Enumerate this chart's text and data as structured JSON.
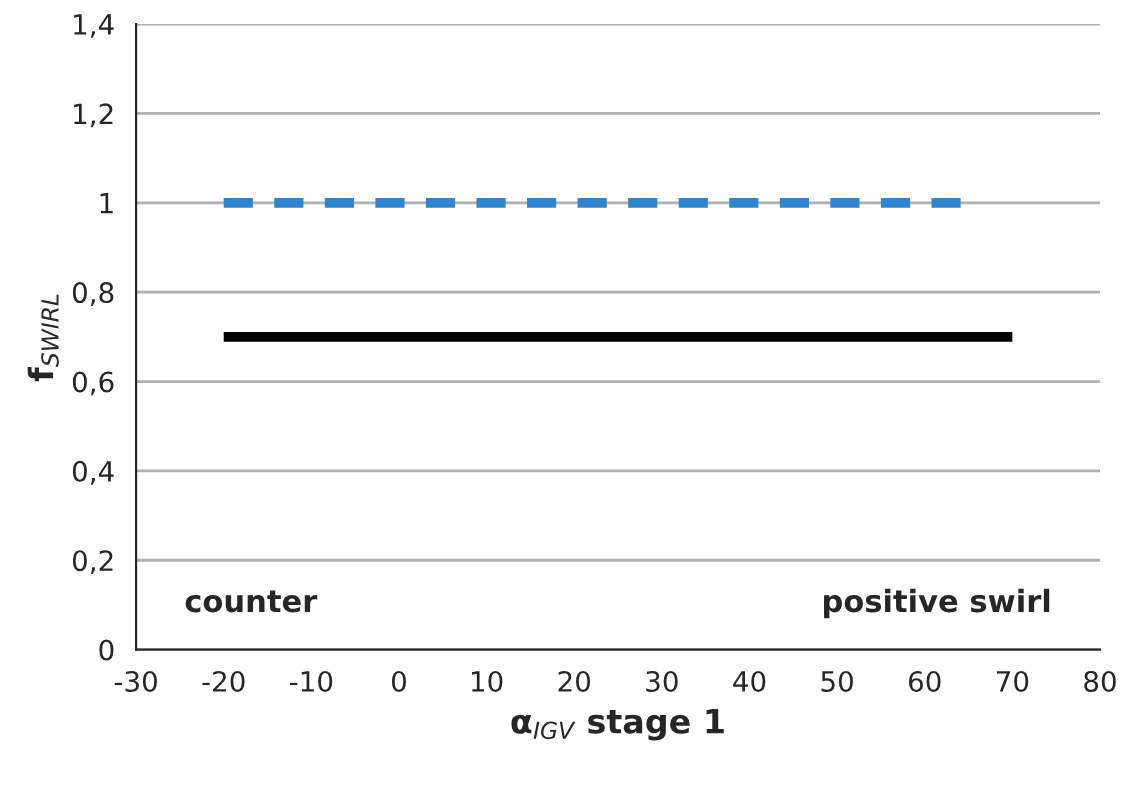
{
  "chart_data": {
    "type": "line",
    "xlabel": "α$_{IGV}$ stage 1",
    "ylabel": "f$_{SWIRL}$",
    "series": [
      {
        "color": "#2e86d0",
        "line_style": "dashed",
        "x": [
          -20,
          65
        ],
        "values": [
          1,
          1
        ]
      },
      {
        "color": "#000000",
        "line_style": "solid",
        "x": [
          -20,
          70
        ],
        "values": [
          0.7,
          0.7
        ]
      }
    ],
    "xlim": [
      -30,
      80
    ],
    "xticks": [
      -30,
      -20,
      -10,
      0,
      10,
      20,
      30,
      40,
      50,
      60,
      70,
      80
    ],
    "ylim": [
      0,
      1.4
    ],
    "yticks": [
      {
        "value": 0,
        "label": "0"
      },
      {
        "value": 0.2,
        "label": "0,2"
      },
      {
        "value": 0.4,
        "label": "0,4"
      },
      {
        "value": 0.6,
        "label": "0,6"
      },
      {
        "value": 0.8,
        "label": "0,8"
      },
      {
        "value": 1,
        "label": "1"
      },
      {
        "value": 1.2,
        "label": "1,2"
      },
      {
        "value": 1.4,
        "label": "1,4"
      }
    ],
    "grid": "y",
    "marker": "none",
    "annotations": [
      "counter",
      "positive swirl"
    ]
  }
}
